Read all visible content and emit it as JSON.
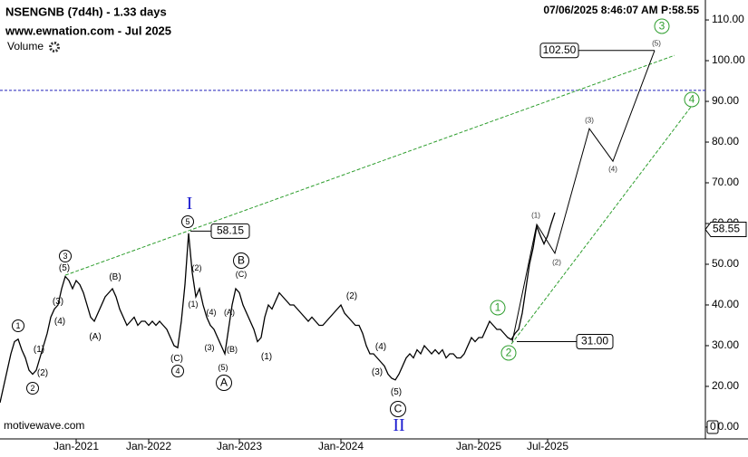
{
  "header": {
    "title": "NSENGNB (7d4h) - 1.33 days",
    "site": "www.ewnation.com  - Jul 2025",
    "volume": "Volume",
    "timestamp": "07/06/2025 8:46:07 AM  P:58.55",
    "footer": "motivewave.com"
  },
  "chart_data": {
    "type": "line",
    "x": [
      0,
      1,
      2,
      3,
      4,
      5,
      6,
      7,
      8,
      9,
      10,
      11,
      12,
      13,
      14,
      15,
      16,
      17,
      18,
      19,
      20,
      21,
      22,
      23,
      24,
      25,
      26,
      27,
      28,
      29,
      30,
      31,
      32,
      33,
      34,
      35,
      36,
      37,
      38,
      39,
      40,
      41,
      42,
      43,
      44,
      45,
      46,
      47,
      48,
      49,
      50,
      51,
      52,
      53,
      54,
      55,
      56,
      57,
      58,
      59,
      60,
      61,
      62,
      63,
      64,
      65,
      66,
      67,
      68,
      69,
      70,
      71,
      72,
      73,
      74,
      75,
      76,
      77,
      78,
      79,
      80,
      81,
      82,
      83,
      84,
      85,
      86,
      87,
      88,
      89,
      90,
      91,
      92,
      93,
      94,
      95,
      96,
      97,
      98,
      99,
      100,
      101,
      102,
      103,
      104,
      105,
      106,
      107,
      108,
      109,
      110,
      111,
      112,
      113,
      114,
      115,
      116,
      117,
      118,
      119,
      120,
      121,
      122,
      123,
      124,
      125,
      126,
      127,
      128,
      129,
      130,
      131,
      132,
      133,
      134,
      135,
      136,
      137,
      138,
      139,
      140,
      141,
      142,
      143,
      144,
      145,
      146,
      147,
      148,
      149,
      150,
      151,
      152,
      153
    ],
    "series": [
      {
        "name": "NSENGNB",
        "color": "#000000",
        "values": [
          16,
          20,
          24,
          28,
          31,
          31.6,
          29,
          27,
          24,
          23,
          24,
          27,
          30,
          33,
          37,
          39,
          40,
          44,
          47,
          46,
          44,
          46,
          45,
          43,
          40,
          37,
          36,
          38,
          40,
          42,
          43,
          44,
          42,
          39,
          37,
          35,
          36,
          37,
          35,
          36,
          36,
          35,
          36,
          35,
          36,
          35,
          34,
          32,
          30,
          29.5,
          36,
          45,
          57.6,
          48,
          42,
          44,
          40,
          37,
          35,
          34,
          32,
          30,
          28,
          34,
          40,
          44,
          43,
          40,
          38,
          36,
          34,
          31,
          32,
          37,
          40,
          39,
          41,
          43,
          42,
          41,
          40,
          40,
          39,
          38,
          37,
          36,
          37,
          36,
          35,
          35,
          36,
          37,
          38,
          39,
          40,
          38,
          37,
          36,
          35,
          35,
          33,
          30,
          28,
          28,
          27,
          26,
          25,
          23,
          22,
          21.6,
          23,
          25,
          27,
          28,
          27,
          29,
          28,
          30,
          29,
          28,
          29,
          28,
          29,
          27,
          28,
          28,
          27,
          27,
          28,
          30,
          32,
          31,
          32,
          32,
          34,
          36,
          35,
          34,
          34,
          33,
          32,
          31.5,
          33,
          34,
          38,
          44,
          50,
          54,
          59.3,
          57,
          55,
          57,
          60,
          62.7
        ]
      }
    ],
    "projection": {
      "color": "#000000",
      "x": [
        141.25,
        148,
        153,
        162.5,
        169,
        180.5
      ],
      "values": [
        31,
        59.8,
        52.7,
        83.3,
        75.3,
        102.5
      ]
    },
    "trendlines": [
      {
        "color": "#2e9e2e",
        "x": [
          18,
          186
        ],
        "values": [
          47.3,
          101.3
        ]
      },
      {
        "color": "#2e9e2e",
        "x": [
          141,
          192
        ],
        "values": [
          30.4,
          90.4
        ]
      }
    ],
    "hline": {
      "value": 92.7,
      "color": "#2222bb"
    },
    "price_labels": [
      58.15,
      {
        "value": 102.5,
        "label": "102.50"
      },
      {
        "value": 31,
        "label": "31.00"
      }
    ],
    "last_price": 58.55,
    "xlim": [
      0,
      194.5
    ],
    "ylim": [
      7.1,
      114.9
    ],
    "xticks": [
      {
        "value": 21,
        "label": "Jan-2021"
      },
      {
        "value": 41,
        "label": "Jan-2022"
      },
      {
        "value": 66,
        "label": "Jan-2023"
      },
      {
        "value": 94,
        "label": "Jan-2024"
      },
      {
        "value": 132,
        "label": "Jan-2025"
      },
      {
        "value": 151,
        "label": "Jul-2025"
      }
    ],
    "yticks": [
      {
        "value": 10,
        "label": "10.00"
      },
      {
        "value": 20,
        "label": "20.00"
      },
      {
        "value": 30,
        "label": "30.00"
      },
      {
        "value": 40,
        "label": "40.00"
      },
      {
        "value": 50,
        "label": "50.00"
      },
      {
        "value": 60,
        "label": "60.00"
      },
      {
        "value": 70,
        "label": "70.00"
      },
      {
        "value": 80,
        "label": "80.00"
      },
      {
        "value": 90,
        "label": "90.00"
      },
      {
        "value": 100,
        "label": "100.00"
      },
      {
        "value": 110,
        "label": "110.00"
      }
    ],
    "volume_ticks": [
      0
    ],
    "annotations": [
      {
        "text": "1",
        "style": "circle"
      },
      {
        "text": "2",
        "style": "circle"
      },
      {
        "text": "(1)",
        "style": "paren"
      },
      {
        "text": "(2)",
        "style": "paren"
      },
      {
        "text": "3",
        "style": "circle"
      },
      {
        "text": "(5)",
        "style": "paren"
      },
      {
        "text": "(3)",
        "style": "paren"
      },
      {
        "text": "(4)",
        "style": "paren"
      },
      {
        "text": "(B)",
        "style": "paren"
      },
      {
        "text": "(A)",
        "style": "paren"
      },
      {
        "text": "I",
        "style": "roman"
      },
      {
        "text": "5",
        "style": "circle"
      },
      {
        "text": "(2)",
        "style": "small"
      },
      {
        "text": "(1)",
        "style": "small"
      },
      {
        "text": "(4)",
        "style": "small"
      },
      {
        "text": "(A)",
        "style": "small"
      },
      {
        "text": "(3)",
        "style": "small"
      },
      {
        "text": "(B)",
        "style": "small"
      },
      {
        "text": "(C)",
        "style": "paren"
      },
      {
        "text": "4",
        "style": "circle"
      },
      {
        "text": "(5)",
        "style": "small"
      },
      {
        "text": "A",
        "style": "big"
      },
      {
        "text": "B",
        "style": "big"
      },
      {
        "text": "(C)",
        "style": "small"
      },
      {
        "text": "(1)",
        "style": "paren"
      },
      {
        "text": "(2)",
        "style": "paren"
      },
      {
        "text": "(4)",
        "style": "paren"
      },
      {
        "text": "(3)",
        "style": "paren"
      },
      {
        "text": "(5)",
        "style": "paren"
      },
      {
        "text": "C",
        "style": "big"
      },
      {
        "text": "II",
        "style": "roman"
      },
      {
        "text": "1",
        "style": "green"
      },
      {
        "text": "2",
        "style": "green"
      },
      {
        "text": "(1)",
        "style": "proj"
      },
      {
        "text": "(2)",
        "style": "proj"
      },
      {
        "text": "(3)",
        "style": "proj"
      },
      {
        "text": "(4)",
        "style": "proj"
      },
      {
        "text": "(5)",
        "style": "proj"
      },
      {
        "text": "3",
        "style": "green"
      },
      {
        "text": "4",
        "style": "green"
      }
    ]
  }
}
